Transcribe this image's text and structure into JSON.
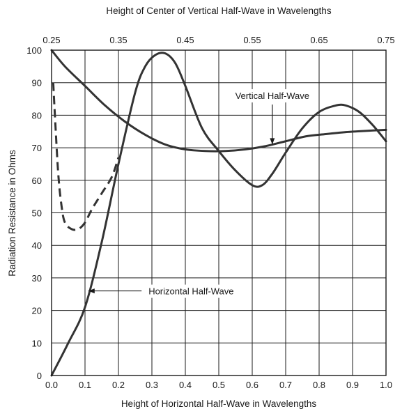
{
  "chart_data": {
    "type": "line",
    "title": "",
    "xlabel": "Height of Horizontal Half-Wave in Wavelengths",
    "ylabel": "Radiation Resistance in Ohms",
    "x2label": "Height of Center of Vertical Half-Wave in Wavelengths",
    "xlim": [
      0,
      1.0
    ],
    "ylim": [
      0,
      100
    ],
    "x2lim": [
      0.25,
      0.75
    ],
    "xticks": [
      "0.0",
      "0.1",
      "0.2",
      "0.3",
      "0.4",
      "0.5",
      "0.6",
      "0.7",
      "0.8",
      "0.9",
      "1.0"
    ],
    "x2ticks": [
      "0.25",
      "0.35",
      "0.45",
      "0.55",
      "0.65",
      "0.75"
    ],
    "yticks": [
      "0",
      "10",
      "20",
      "30",
      "40",
      "50",
      "60",
      "70",
      "80",
      "90",
      "100"
    ],
    "grid": true,
    "series": [
      {
        "name": "Horizontal Half-Wave",
        "axis": "bottom",
        "style": "solid",
        "x": [
          0,
          0.05,
          0.1,
          0.15,
          0.2,
          0.25,
          0.28,
          0.31,
          0.34,
          0.37,
          0.4,
          0.45,
          0.5,
          0.55,
          0.6,
          0.63,
          0.66,
          0.7,
          0.75,
          0.8,
          0.85,
          0.88,
          0.92,
          0.96,
          1.0
        ],
        "values": [
          0,
          10,
          21,
          41,
          65,
          87,
          95,
          98.5,
          99,
          96,
          89,
          76,
          69,
          63,
          58.5,
          58.5,
          62,
          68.5,
          76,
          81,
          83,
          83,
          81,
          77,
          72
        ]
      },
      {
        "name": "",
        "axis": "bottom",
        "style": "dashed",
        "x": [
          0.005,
          0.01,
          0.02,
          0.03,
          0.04,
          0.06,
          0.08,
          0.1,
          0.12,
          0.15,
          0.18,
          0.2
        ],
        "values": [
          90,
          80,
          62,
          52,
          47,
          45,
          45,
          47,
          51,
          56,
          61,
          67
        ]
      },
      {
        "name": "Vertical Half-Wave",
        "axis": "top",
        "style": "solid",
        "x": [
          0.25,
          0.27,
          0.3,
          0.33,
          0.36,
          0.39,
          0.42,
          0.45,
          0.48,
          0.51,
          0.54,
          0.57,
          0.6,
          0.63,
          0.66,
          0.69,
          0.72,
          0.75
        ],
        "values": [
          100,
          95,
          89,
          83,
          78,
          74,
          71,
          69.5,
          69,
          69,
          69.5,
          70.5,
          72,
          73.5,
          74.2,
          74.8,
          75.2,
          75.5
        ]
      }
    ],
    "annotations": [
      {
        "text": "Vertical Half-Wave",
        "x": 0.66,
        "y": 82,
        "arrow_to": {
          "x": 0.66,
          "y": 71
        }
      },
      {
        "text": "Horizontal Half-Wave",
        "x": 0.29,
        "y": 26,
        "arrow_to": {
          "x": 0.11,
          "y": 26
        }
      }
    ]
  }
}
